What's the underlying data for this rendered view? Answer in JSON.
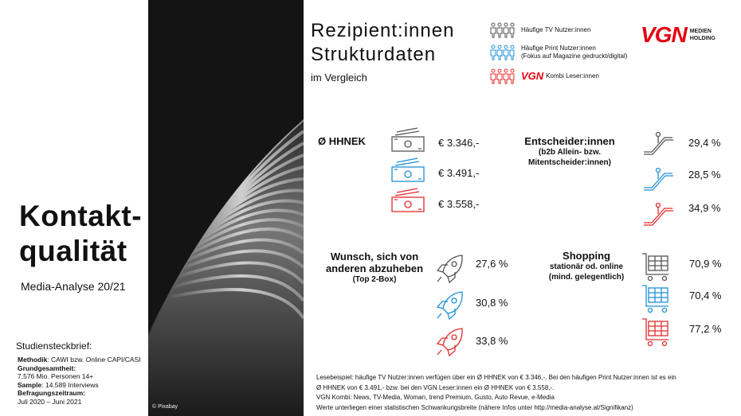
{
  "colors": {
    "tv": "#555555",
    "print": "#1f8fd6",
    "vgn": "#e32b2b",
    "brand_red": "#e30613"
  },
  "left": {
    "title": "Kontakt-\nqualität",
    "subtitle": "Media-Analyse 20/21",
    "brief_title": "Studiensteckbrief:",
    "brief": {
      "methodik_label": "Methodik",
      "methodik_value": ": CAWI bzw. Online CAPI/CASI",
      "grund_label": "Grundgesamtheit:",
      "grund_value": "7,576 Mio. Personen 14+",
      "sample_label": "Sample",
      "sample_value": ": 14.589 Interviews",
      "zeitraum_label": "Befragungszeitraum:",
      "zeitraum_value": "Juli 2020 – Juni 2021"
    }
  },
  "photo": {
    "credit": "© Pixabay"
  },
  "header": {
    "title": "Rezipient:innen\nStrukturdaten",
    "subtitle": "im Vergleich"
  },
  "legend": {
    "tv": "Häufige TV Nutzer:innen",
    "print_line1": "Häufige Print Nutzer:innen",
    "print_line2": "(Fokus auf Magazine gedruckt/digital)",
    "vgn_logo": "VGN",
    "vgn": "Kombi Leser:innen"
  },
  "brand": {
    "logo": "VGN",
    "line1": "MEDIEN",
    "line2": "HOLDING"
  },
  "hhnek": {
    "label": "Ø HHNEK",
    "values": [
      "€ 3.346,-",
      "€ 3.491,-",
      "€ 3.558,-"
    ],
    "icon": "banknotes-icon"
  },
  "entscheider": {
    "label": "Entscheider:innen",
    "sub1": "(b2b Allein- bzw.",
    "sub2": "Mitentscheider:innen)",
    "values": [
      "29,4 %",
      "28,5 %",
      "34,9 %"
    ],
    "icon": "escalator-icon"
  },
  "wunsch": {
    "label1": "Wunsch, sich von",
    "label2": "anderen abzuheben",
    "sub": "(Top 2-Box)",
    "values": [
      "27,6 %",
      "30,8 %",
      "33,8 %"
    ],
    "icon": "rocket-icon"
  },
  "shopping": {
    "label": "Shopping",
    "sub1": "stationär od. online",
    "sub2": "(mind. gelegentlich)",
    "values": [
      "70,9 %",
      "70,4 %",
      "77,2 %"
    ],
    "icon": "shopping-cart-icon"
  },
  "footnotes": {
    "line1": "Lesebeispiel: häufige TV Nutzer:innen verfügen über ein Ø HHNEK von € 3.346,-. Bei den häufigen Print Nutzer:innen ist es ein",
    "line2": "Ø HHNEK von € 3.491,- bzw. bei den VGN Leser:innen ein Ø HHNEK von € 3.558,-.",
    "line3": "VGN Kombi: News, TV-Media, Woman, trend Premium, Gusto, Auto Revue, e-Media",
    "line4": "Werte unterliegen einer statistischen Schwankungsbreite (nähere Infos unter http://media-analyse.at/Signifikanz)"
  }
}
